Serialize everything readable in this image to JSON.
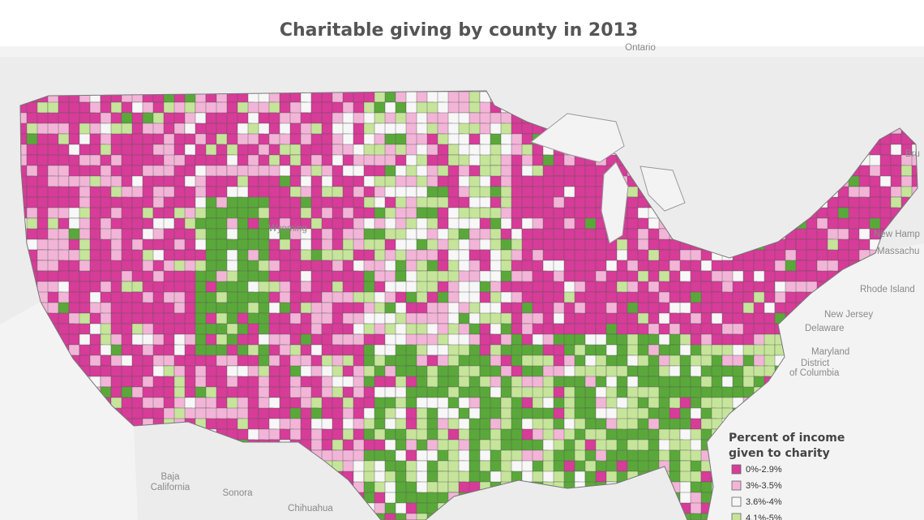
{
  "title": "Charitable giving by county in 2013",
  "places": [
    "Ontario",
    "Wyoming",
    "New Hamp",
    "Massachu",
    "Rhode Island",
    "New Jersey",
    "Delaware",
    "Maryland",
    "District",
    "of Columbia",
    "Baja",
    "California",
    "Sonora",
    "Chihuahua",
    "Bru"
  ],
  "legend": {
    "title": [
      "Percent of income",
      "given to charity"
    ],
    "items": [
      {
        "label": "0%-2.9%",
        "color": "#d63c98"
      },
      {
        "label": "3%-3.5%",
        "color": "#f2b5d7"
      },
      {
        "label": "3.6%-4%",
        "color": "#f7f7f7"
      },
      {
        "label": "4.1%-5%",
        "color": "#c6e59b"
      },
      {
        "color": "#5aa83a"
      }
    ]
  }
}
